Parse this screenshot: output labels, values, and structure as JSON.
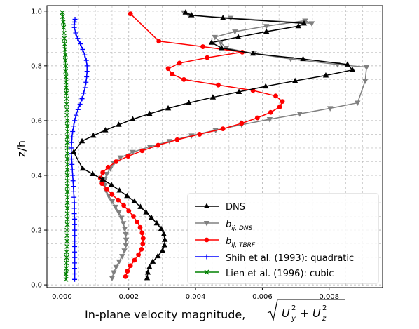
{
  "chart_data": {
    "type": "line",
    "xlabel": "In-plane velocity magnitude, ",
    "ylabel": "z/h",
    "xlim": [
      -0.00045,
      0.0096
    ],
    "ylim": [
      -0.01,
      1.02
    ],
    "xticks": [
      0.0,
      0.002,
      0.004,
      0.006,
      0.008
    ],
    "xtick_labels": [
      "0.000",
      "0.002",
      "0.004",
      "0.006",
      "0.008"
    ],
    "yticks": [
      0.0,
      0.2,
      0.4,
      0.6,
      0.8,
      1.0
    ],
    "ytick_labels": [
      "0.0",
      "0.2",
      "0.4",
      "0.6",
      "0.8",
      "1.0"
    ],
    "grid": true,
    "legend_position": "lower-right",
    "series": [
      {
        "key": "dns",
        "name": "DNS",
        "color": "#000000",
        "marker": "triangle-up",
        "x": [
          0.00255,
          0.00257,
          0.00262,
          0.00272,
          0.00287,
          0.00301,
          0.00307,
          0.00308,
          0.00305,
          0.00297,
          0.00284,
          0.00268,
          0.00252,
          0.00235,
          0.00217,
          0.00195,
          0.00172,
          0.00148,
          0.00122,
          0.00092,
          0.00062,
          0.00035,
          0.0006,
          0.00094,
          0.0013,
          0.0017,
          0.00212,
          0.00262,
          0.00318,
          0.0038,
          0.00452,
          0.0053,
          0.0061,
          0.00698,
          0.0079,
          0.0087,
          0.00855,
          0.00722,
          0.00572,
          0.00478,
          0.00448,
          0.00528,
          0.00612,
          0.00708,
          0.00725,
          0.00482,
          0.00388,
          0.0037
        ],
        "y": [
          0.025,
          0.045,
          0.065,
          0.085,
          0.105,
          0.125,
          0.145,
          0.165,
          0.185,
          0.205,
          0.225,
          0.245,
          0.265,
          0.285,
          0.305,
          0.325,
          0.345,
          0.365,
          0.385,
          0.405,
          0.425,
          0.485,
          0.525,
          0.545,
          0.565,
          0.585,
          0.605,
          0.625,
          0.645,
          0.665,
          0.685,
          0.705,
          0.725,
          0.745,
          0.765,
          0.785,
          0.805,
          0.825,
          0.845,
          0.865,
          0.885,
          0.905,
          0.925,
          0.945,
          0.955,
          0.975,
          0.985,
          0.995
        ]
      },
      {
        "key": "bdns",
        "name": "b_{ij,DNS}",
        "color": "#808080",
        "marker": "triangle-down",
        "x": [
          0.0015,
          0.00155,
          0.00162,
          0.00171,
          0.0018,
          0.00187,
          0.00191,
          0.00192,
          0.00191,
          0.00188,
          0.00184,
          0.00178,
          0.0017,
          0.0016,
          0.0015,
          0.0014,
          0.00132,
          0.00128,
          0.00128,
          0.00134,
          0.00145,
          0.00155,
          0.00175,
          0.00212,
          0.00263,
          0.00322,
          0.00388,
          0.0046,
          0.00538,
          0.00622,
          0.00712,
          0.00803,
          0.00885,
          0.00908,
          0.00912,
          0.00825,
          0.00685,
          0.00575,
          0.00492,
          0.00475,
          0.00458,
          0.00518,
          0.00612,
          0.00728,
          0.00748,
          0.00505,
          0.0038,
          0.00365
        ],
        "y": [
          0.025,
          0.045,
          0.065,
          0.085,
          0.105,
          0.125,
          0.145,
          0.165,
          0.185,
          0.205,
          0.225,
          0.245,
          0.265,
          0.285,
          0.305,
          0.325,
          0.345,
          0.365,
          0.385,
          0.405,
          0.425,
          0.445,
          0.465,
          0.485,
          0.505,
          0.525,
          0.545,
          0.565,
          0.585,
          0.605,
          0.625,
          0.645,
          0.665,
          0.745,
          0.795,
          0.805,
          0.825,
          0.845,
          0.865,
          0.885,
          0.905,
          0.925,
          0.945,
          0.965,
          0.955,
          0.975,
          0.985,
          0.995
        ]
      },
      {
        "key": "btbrf",
        "name": "b_{ij,TBRF}",
        "color": "#ff0000",
        "marker": "circle",
        "x": [
          0.0019,
          0.00196,
          0.00205,
          0.00217,
          0.00229,
          0.00238,
          0.00242,
          0.00243,
          0.0024,
          0.00234,
          0.00225,
          0.00214,
          0.002,
          0.00185,
          0.00168,
          0.0015,
          0.00134,
          0.0012,
          0.00115,
          0.00122,
          0.00138,
          0.00162,
          0.00198,
          0.0024,
          0.00288,
          0.00345,
          0.00412,
          0.00482,
          0.00538,
          0.00585,
          0.00625,
          0.00652,
          0.0066,
          0.0064,
          0.00572,
          0.00468,
          0.00365,
          0.0033,
          0.00318,
          0.00352,
          0.00435,
          0.0054,
          0.00422,
          0.0029,
          0.00205
        ],
        "y": [
          0.03,
          0.05,
          0.07,
          0.09,
          0.11,
          0.13,
          0.15,
          0.17,
          0.19,
          0.21,
          0.23,
          0.25,
          0.27,
          0.29,
          0.31,
          0.33,
          0.35,
          0.37,
          0.39,
          0.41,
          0.43,
          0.45,
          0.47,
          0.49,
          0.51,
          0.53,
          0.55,
          0.57,
          0.59,
          0.61,
          0.63,
          0.65,
          0.67,
          0.69,
          0.71,
          0.73,
          0.75,
          0.77,
          0.79,
          0.81,
          0.83,
          0.85,
          0.87,
          0.89,
          0.99
        ]
      },
      {
        "key": "shih",
        "name": "Shih et al. (1993): quadratic",
        "color": "#0000ff",
        "marker": "plus",
        "x": [
          0.00038,
          0.00038,
          0.00038,
          0.00038,
          0.00038,
          0.00038,
          0.00038,
          0.00038,
          0.00038,
          0.00038,
          0.00038,
          0.00038,
          0.00037,
          0.00037,
          0.00037,
          0.00036,
          0.00035,
          0.00034,
          0.00033,
          0.00032,
          0.00031,
          0.0003,
          0.00029,
          0.00028,
          0.00028,
          0.00029,
          0.0003,
          0.00032,
          0.00035,
          0.00038,
          0.00042,
          0.00048,
          0.00054,
          0.0006,
          0.00065,
          0.00069,
          0.00072,
          0.00074,
          0.00075,
          0.00075,
          0.00073,
          0.00068,
          0.00062,
          0.00055,
          0.00047,
          0.00041,
          0.00037,
          0.00036,
          0.00038,
          0.00039
        ],
        "y": [
          0.02,
          0.04,
          0.06,
          0.08,
          0.1,
          0.12,
          0.14,
          0.16,
          0.18,
          0.2,
          0.22,
          0.24,
          0.26,
          0.28,
          0.3,
          0.32,
          0.34,
          0.36,
          0.38,
          0.4,
          0.42,
          0.44,
          0.46,
          0.48,
          0.5,
          0.52,
          0.54,
          0.56,
          0.58,
          0.6,
          0.62,
          0.64,
          0.66,
          0.68,
          0.7,
          0.72,
          0.74,
          0.76,
          0.78,
          0.8,
          0.82,
          0.84,
          0.86,
          0.88,
          0.9,
          0.92,
          0.94,
          0.95,
          0.96,
          0.97
        ]
      },
      {
        "key": "lien",
        "name": "Lien et al. (1996): cubic",
        "color": "#008000",
        "marker": "x",
        "x": [
          0.00012,
          0.00012,
          0.00013,
          0.00013,
          0.00014,
          0.00014,
          0.00015,
          0.00015,
          0.00015,
          0.00015,
          0.00016,
          0.00016,
          0.00016,
          0.00016,
          0.00016,
          0.00016,
          0.00016,
          0.00016,
          0.00016,
          0.00016,
          0.00016,
          0.00016,
          0.00016,
          0.00016,
          0.00016,
          0.00016,
          0.00016,
          0.00016,
          0.00016,
          0.00016,
          0.00015,
          0.00015,
          0.00014,
          0.00014,
          0.00013,
          0.00013,
          0.00012,
          0.00012,
          0.00011,
          0.00011,
          0.0001,
          0.0001,
          9e-05,
          8e-05,
          7e-05,
          6e-05,
          5e-05,
          4e-05,
          2e-05,
          1e-05
        ],
        "y": [
          0.02,
          0.04,
          0.06,
          0.08,
          0.1,
          0.12,
          0.14,
          0.16,
          0.18,
          0.2,
          0.22,
          0.24,
          0.26,
          0.28,
          0.3,
          0.32,
          0.34,
          0.36,
          0.38,
          0.4,
          0.42,
          0.44,
          0.46,
          0.48,
          0.5,
          0.52,
          0.54,
          0.56,
          0.58,
          0.6,
          0.62,
          0.64,
          0.66,
          0.68,
          0.7,
          0.72,
          0.74,
          0.76,
          0.78,
          0.8,
          0.82,
          0.84,
          0.86,
          0.88,
          0.9,
          0.92,
          0.94,
          0.96,
          0.98,
          0.995
        ]
      }
    ]
  }
}
